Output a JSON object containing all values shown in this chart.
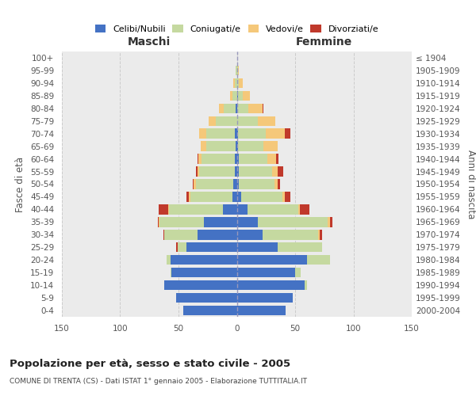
{
  "age_groups": [
    "0-4",
    "5-9",
    "10-14",
    "15-19",
    "20-24",
    "25-29",
    "30-34",
    "35-39",
    "40-44",
    "45-49",
    "50-54",
    "55-59",
    "60-64",
    "65-69",
    "70-74",
    "75-79",
    "80-84",
    "85-89",
    "90-94",
    "95-99",
    "100+"
  ],
  "birth_years": [
    "2000-2004",
    "1995-1999",
    "1990-1994",
    "1985-1989",
    "1980-1984",
    "1975-1979",
    "1970-1974",
    "1965-1969",
    "1960-1964",
    "1955-1959",
    "1950-1954",
    "1945-1949",
    "1940-1944",
    "1935-1939",
    "1930-1934",
    "1925-1929",
    "1920-1924",
    "1915-1919",
    "1910-1914",
    "1905-1909",
    "≤ 1904"
  ],
  "maschi": {
    "celibi": [
      46,
      52,
      62,
      56,
      57,
      43,
      34,
      28,
      12,
      4,
      3,
      2,
      2,
      1,
      2,
      0,
      1,
      0,
      0,
      0,
      0
    ],
    "coniugati": [
      0,
      0,
      0,
      1,
      3,
      8,
      28,
      38,
      46,
      36,
      32,
      30,
      28,
      25,
      24,
      18,
      10,
      4,
      2,
      1,
      0
    ],
    "vedovi": [
      0,
      0,
      0,
      0,
      0,
      0,
      0,
      1,
      1,
      1,
      2,
      2,
      3,
      5,
      6,
      6,
      4,
      2,
      1,
      0,
      0
    ],
    "divorziati": [
      0,
      0,
      0,
      0,
      0,
      1,
      1,
      1,
      8,
      2,
      1,
      1,
      1,
      0,
      0,
      0,
      0,
      0,
      0,
      0,
      0
    ]
  },
  "femmine": {
    "nubili": [
      42,
      48,
      58,
      50,
      60,
      35,
      22,
      18,
      9,
      4,
      2,
      2,
      2,
      1,
      1,
      0,
      0,
      1,
      0,
      0,
      0
    ],
    "coniugate": [
      0,
      0,
      2,
      5,
      20,
      38,
      48,
      60,
      44,
      35,
      30,
      28,
      24,
      22,
      24,
      18,
      10,
      4,
      2,
      1,
      0
    ],
    "vedove": [
      0,
      0,
      0,
      0,
      0,
      0,
      1,
      2,
      1,
      2,
      3,
      5,
      8,
      12,
      16,
      15,
      12,
      6,
      3,
      1,
      0
    ],
    "divorziate": [
      0,
      0,
      0,
      0,
      0,
      0,
      2,
      2,
      8,
      5,
      2,
      5,
      2,
      0,
      5,
      0,
      1,
      0,
      0,
      0,
      0
    ]
  },
  "color_celibi": "#4472C4",
  "color_coniugati": "#C5D9A0",
  "color_vedovi": "#F5C87A",
  "color_divorziati": "#C0392B",
  "xlim": 150,
  "title": "Popolazione per età, sesso e stato civile - 2005",
  "subtitle": "COMUNE DI TRENTA (CS) - Dati ISTAT 1° gennaio 2005 - Elaborazione TUTTITALIA.IT",
  "ylabel_left": "Fasce di età",
  "ylabel_right": "Anni di nascita",
  "xlabel_maschi": "Maschi",
  "xlabel_femmine": "Femmine",
  "bg_color": "#ffffff",
  "plot_bg_color": "#ebebeb"
}
